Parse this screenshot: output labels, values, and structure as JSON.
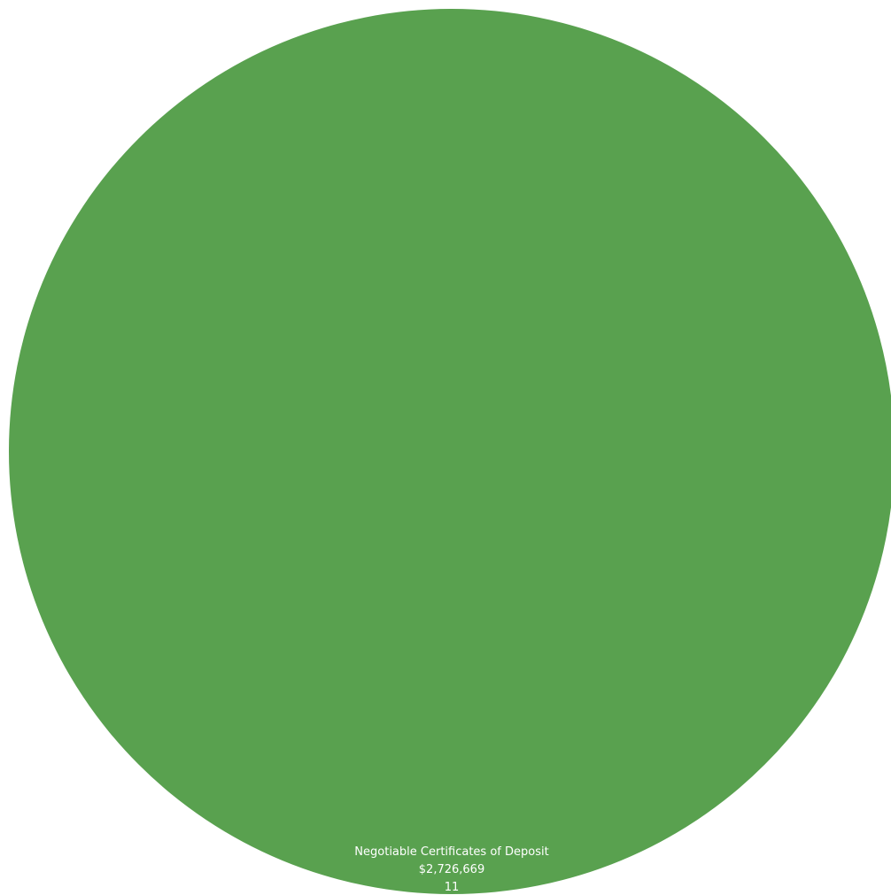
{
  "chart_data": {
    "type": "pie",
    "title": "",
    "slices": [
      {
        "label": "Negotiable Certificates of Deposit",
        "value": 2726669,
        "value_label": "$2,726,669",
        "count": 11,
        "count_label": "11",
        "color": "#59a14f"
      }
    ],
    "legend": "none"
  }
}
